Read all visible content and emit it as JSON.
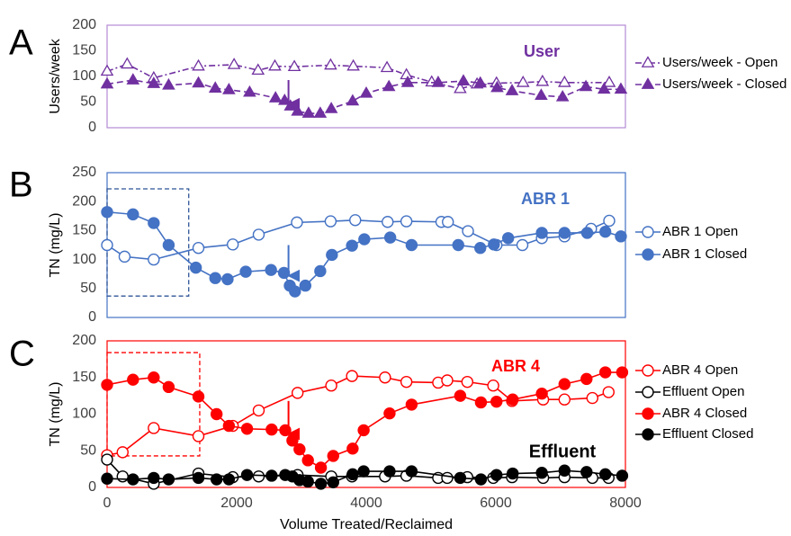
{
  "chart_data": [
    {
      "type": "line",
      "panel_letter": "A",
      "title": "User",
      "title_color": "#7030a0",
      "ylabel": "Users/week",
      "xlabel": "",
      "ylim": [
        0,
        200
      ],
      "yticks": [
        "0",
        "50",
        "100",
        "150",
        "200"
      ],
      "xlim": [
        0,
        8000
      ],
      "border_color": "#b58ad6",
      "series": [
        {
          "name": "Users/week - Open",
          "color": "#7030a0",
          "marker": "triangle-open",
          "dash": "dashdot",
          "x": [
            0,
            310,
            720,
            1410,
            1960,
            2330,
            2590,
            2890,
            3450,
            3800,
            4320,
            4620,
            5010,
            5450,
            5710,
            6010,
            6420,
            6720,
            7060,
            7750
          ],
          "y": [
            110,
            124,
            97,
            120,
            123,
            112,
            120,
            119,
            122,
            120,
            117,
            103,
            89,
            76,
            85,
            87,
            88,
            90,
            88,
            88
          ]
        },
        {
          "name": "Users/week - Closed",
          "color": "#7030a0",
          "marker": "triangle-filled",
          "dash": "dash",
          "x": [
            0,
            400,
            720,
            950,
            1410,
            1670,
            1880,
            2200,
            2600,
            2740,
            2830,
            2940,
            3110,
            3290,
            3460,
            3790,
            4000,
            4350,
            4640,
            5110,
            5500,
            5760,
            6020,
            6250,
            6700,
            7030,
            7390,
            7670,
            7930
          ],
          "y": [
            85,
            93,
            86,
            83,
            87,
            77,
            74,
            69,
            58,
            53,
            42,
            32,
            28,
            28,
            37,
            52,
            67,
            80,
            88,
            88,
            91,
            87,
            78,
            72,
            63,
            60,
            80,
            75,
            75
          ]
        }
      ]
    },
    {
      "type": "line",
      "panel_letter": "B",
      "title": "ABR 1",
      "title_color": "#4472c4",
      "ylabel": "TN (mg/L)",
      "xlabel": "",
      "ylim": [
        0,
        250
      ],
      "yticks": [
        "0",
        "50",
        "100",
        "150",
        "200",
        "250"
      ],
      "xlim": [
        0,
        8000
      ],
      "border_color": "#4472c4",
      "box": {
        "x0": 0,
        "x1": 1260,
        "y0": 37,
        "y1": 222,
        "color": "#2f5597"
      },
      "arrow": {
        "x": 2800,
        "y_from": 125,
        "y_to": 72
      },
      "series": [
        {
          "name": "ABR 1 Open",
          "color": "#4472c4",
          "marker": "circle-open",
          "dash": "solid",
          "x": [
            0,
            270,
            720,
            1410,
            1940,
            2340,
            2930,
            3450,
            3830,
            4330,
            4620,
            5160,
            5260,
            5570,
            6010,
            6410,
            6710,
            7060,
            7470,
            7750
          ],
          "y": [
            125,
            105,
            100,
            120,
            126,
            143,
            164,
            166,
            168,
            165,
            166,
            165,
            165,
            149,
            125,
            125,
            137,
            140,
            153,
            167
          ]
        },
        {
          "name": "ABR 1 Closed",
          "color": "#4472c4",
          "marker": "circle-filled",
          "dash": "solid",
          "x": [
            0,
            400,
            720,
            950,
            1370,
            1670,
            1860,
            2140,
            2530,
            2730,
            2820,
            2900,
            3060,
            3290,
            3470,
            3780,
            3970,
            4370,
            4700,
            5420,
            5760,
            5970,
            6190,
            6710,
            7060,
            7410,
            7690,
            7930
          ],
          "y": [
            182,
            178,
            163,
            125,
            86,
            68,
            66,
            79,
            82,
            77,
            55,
            45,
            55,
            80,
            108,
            124,
            135,
            138,
            125,
            125,
            120,
            126,
            137,
            146,
            146,
            146,
            148,
            140
          ]
        }
      ]
    },
    {
      "type": "line",
      "panel_letter": "C",
      "title": "ABR 4",
      "title_color": "#ff0000",
      "subtitle": "Effluent",
      "ylabel": "TN (mg/L)",
      "xlabel": "Volume Treated/Reclaimed",
      "ylim": [
        0,
        200
      ],
      "yticks": [
        "0",
        "50",
        "100",
        "150",
        "200"
      ],
      "xlim": [
        0,
        8000
      ],
      "xticks": [
        "0",
        "2000",
        "4000",
        "6000",
        "8000"
      ],
      "border_color": "#ff0000",
      "box": {
        "x0": 0,
        "x1": 1430,
        "y0": 43,
        "y1": 184,
        "color": "#ff0000"
      },
      "arrow": {
        "x": 2800,
        "y_from": 118,
        "y_to": 73
      },
      "series": [
        {
          "name": "ABR 4 Open",
          "color": "#ff0000",
          "marker": "circle-open",
          "dash": "solid",
          "x": [
            0,
            240,
            720,
            1410,
            1940,
            2340,
            2940,
            3460,
            3780,
            4290,
            4620,
            5110,
            5250,
            5560,
            5960,
            6250,
            6730,
            7060,
            7490,
            7740
          ],
          "y": [
            44,
            48,
            81,
            70,
            84,
            105,
            129,
            139,
            152,
            150,
            144,
            143,
            146,
            144,
            139,
            118,
            120,
            120,
            122,
            130
          ]
        },
        {
          "name": "Effluent Open",
          "color": "#000000",
          "marker": "circle-open",
          "dash": "solid",
          "x": [
            0,
            240,
            720,
            1410,
            1940,
            2340,
            2940,
            3460,
            3780,
            4290,
            4620,
            5110,
            5250,
            5560,
            5960,
            6250,
            6730,
            7060,
            7490,
            7740
          ],
          "y": [
            38,
            15,
            5,
            19,
            14,
            15,
            17,
            15,
            15,
            15,
            16,
            13,
            13,
            14,
            13,
            14,
            13,
            14,
            13,
            13
          ]
        },
        {
          "name": "ABR 4 Closed",
          "color": "#ff0000",
          "marker": "circle-filled",
          "dash": "solid",
          "x": [
            0,
            400,
            720,
            950,
            1410,
            1690,
            1880,
            2160,
            2540,
            2750,
            2860,
            2970,
            3100,
            3300,
            3490,
            3790,
            3960,
            4360,
            4700,
            5450,
            5770,
            6010,
            6260,
            6710,
            7060,
            7400,
            7690,
            7950
          ],
          "y": [
            140,
            147,
            150,
            137,
            124,
            100,
            84,
            80,
            79,
            78,
            64,
            52,
            37,
            27,
            43,
            53,
            78,
            101,
            113,
            125,
            116,
            117,
            120,
            128,
            141,
            148,
            157,
            157
          ]
        },
        {
          "name": "Effluent Closed",
          "color": "#000000",
          "marker": "circle-filled",
          "dash": "solid",
          "x": [
            0,
            400,
            720,
            950,
            1410,
            1690,
            1880,
            2160,
            2540,
            2750,
            2860,
            2970,
            3100,
            3300,
            3490,
            3790,
            3960,
            4360,
            4700,
            5450,
            5770,
            6010,
            6260,
            6710,
            7060,
            7400,
            7690,
            7950
          ],
          "y": [
            12,
            11,
            13,
            11,
            13,
            11,
            11,
            17,
            16,
            17,
            15,
            10,
            8,
            5,
            7,
            18,
            22,
            22,
            22,
            13,
            11,
            17,
            19,
            20,
            23,
            21,
            18,
            16
          ]
        }
      ]
    }
  ]
}
